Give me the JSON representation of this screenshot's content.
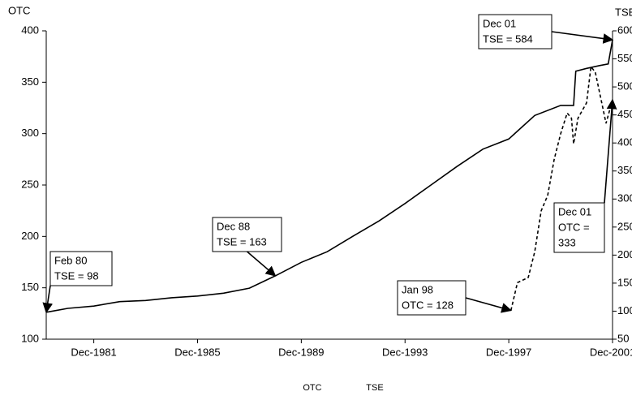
{
  "chart_data": {
    "type": "line",
    "y_label": "OTC",
    "y2_label": "TSE",
    "xlim": [
      "1980-02",
      "2001-12"
    ],
    "xticks": [
      {
        "value": "1981-12",
        "label": "Dec-1981"
      },
      {
        "value": "1985-12",
        "label": "Dec-1985"
      },
      {
        "value": "1989-12",
        "label": "Dec-1989"
      },
      {
        "value": "1993-12",
        "label": "Dec-1993"
      },
      {
        "value": "1997-12",
        "label": "Dec-1997"
      },
      {
        "value": "2001-12",
        "label": "Dec-2001"
      }
    ],
    "ylim": [
      100,
      400
    ],
    "yticks": [
      100,
      150,
      200,
      250,
      300,
      350,
      400
    ],
    "y2lim": [
      50,
      600
    ],
    "y2ticks": [
      50,
      100,
      150,
      200,
      250,
      300,
      350,
      400,
      450,
      500,
      550,
      600
    ],
    "series": [
      {
        "name": "OTC",
        "color": "#000000",
        "dash": true,
        "x": [
          "1998-01",
          "1998-04",
          "1998-09",
          "1998-12",
          "1999-03",
          "1999-06",
          "1999-09",
          "1999-12",
          "2000-03",
          "2000-05",
          "2000-06",
          "2000-08",
          "2000-12",
          "2001-02",
          "2001-04",
          "2001-07",
          "2001-09",
          "2001-12"
        ],
        "values": [
          128,
          155,
          160,
          185,
          225,
          240,
          275,
          300,
          320,
          315,
          290,
          315,
          330,
          365,
          360,
          330,
          310,
          333
        ]
      },
      {
        "name": "TSE",
        "color": "#000000",
        "axis": "y2",
        "x": [
          "1980-02",
          "1980-12",
          "1981-12",
          "1982-12",
          "1983-12",
          "1984-12",
          "1985-12",
          "1986-12",
          "1987-12",
          "1988-12",
          "1989-12",
          "1990-12",
          "1991-12",
          "1992-12",
          "1993-12",
          "1994-12",
          "1995-12",
          "1996-12",
          "1997-12",
          "1998-12",
          "1999-12",
          "2000-06",
          "2000-07",
          "2000-12",
          "2001-06",
          "2001-10",
          "2001-12"
        ],
        "values": [
          98,
          105,
          109,
          117,
          119,
          124,
          127,
          132,
          141,
          163,
          187,
          206,
          234,
          261,
          292,
          325,
          358,
          389,
          407,
          449,
          467,
          467,
          528,
          533,
          538,
          541,
          584
        ]
      }
    ],
    "annotations": [
      {
        "lines": [
          "Feb 80",
          "TSE = 98"
        ]
      },
      {
        "lines": [
          "Dec 88",
          "TSE = 163"
        ]
      },
      {
        "lines": [
          "Jan 98",
          "OTC = 128"
        ]
      },
      {
        "lines": [
          "Dec 01",
          "TSE = 584"
        ]
      },
      {
        "lines": [
          "Dec 01",
          "OTC =",
          "333"
        ]
      }
    ]
  }
}
